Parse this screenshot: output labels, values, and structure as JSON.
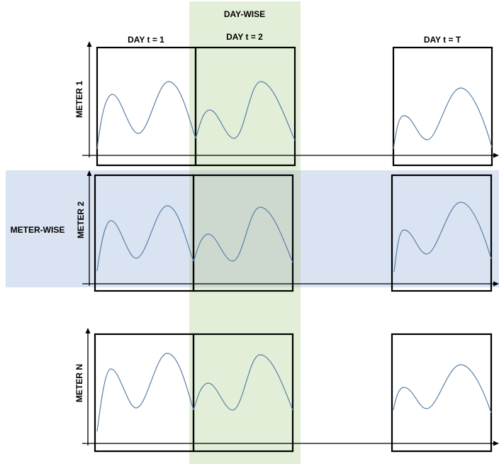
{
  "labels": {
    "day_wise": "DAY-WISE",
    "meter_wise": "METER-WISE",
    "day_1": "DAY t = 1",
    "day_2": "DAY t = 2",
    "day_T": "DAY t = T",
    "meter_1": "METER 1",
    "meter_2": "METER 2",
    "meter_N": "METER N"
  },
  "colors": {
    "day_wise_band": "#e2eed8",
    "meter_wise_band": "#dae3f2",
    "overlap_region": "#cdd8cf",
    "curve": "#5b7fa6"
  }
}
